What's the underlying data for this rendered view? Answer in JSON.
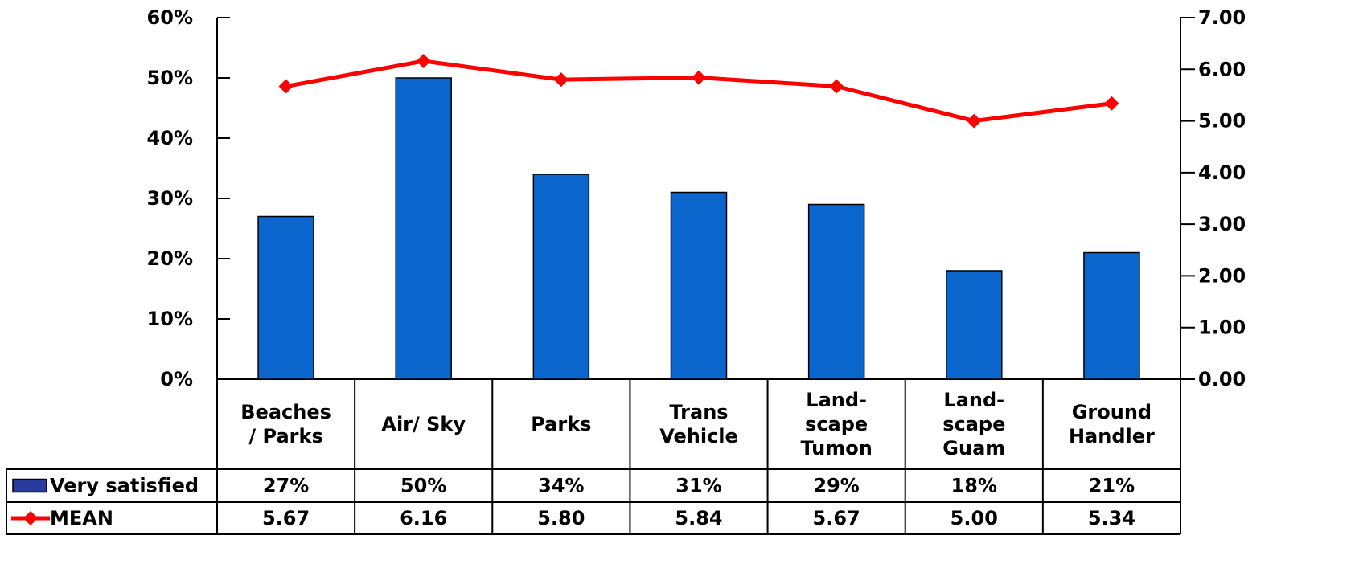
{
  "chart_data": {
    "type": "bar",
    "title": "",
    "xlabel": "",
    "ylabel": "",
    "categories": [
      [
        "Beaches",
        "/ Parks"
      ],
      [
        "Air/ Sky"
      ],
      [
        "Parks"
      ],
      [
        "Trans",
        "Vehicle"
      ],
      [
        "Land-",
        "scape",
        "Tumon"
      ],
      [
        "Land-",
        "scape",
        "Guam"
      ],
      [
        "Ground",
        "Handler"
      ]
    ],
    "ylim": [
      0,
      60
    ],
    "y_ticks": [
      0,
      10,
      20,
      30,
      40,
      50,
      60
    ],
    "y_tick_labels": [
      "0%",
      "10%",
      "20%",
      "30%",
      "40%",
      "50%",
      "60%"
    ],
    "y2lim": [
      0,
      7
    ],
    "y2_ticks": [
      0,
      1,
      2,
      3,
      4,
      5,
      6,
      7
    ],
    "y2_tick_labels": [
      "0.00",
      "1.00",
      "2.00",
      "3.00",
      "4.00",
      "5.00",
      "6.00",
      "7.00"
    ],
    "series": [
      {
        "name": "Very satisfied",
        "kind": "bar",
        "axis": "left",
        "color": "#0a66cc",
        "values": [
          27,
          50,
          34,
          31,
          29,
          18,
          21
        ],
        "labels": [
          "27%",
          "50%",
          "34%",
          "31%",
          "29%",
          "18%",
          "21%"
        ]
      },
      {
        "name": "MEAN",
        "kind": "line",
        "axis": "right",
        "color": "#ff0000",
        "values": [
          5.67,
          6.16,
          5.8,
          5.84,
          5.67,
          5.0,
          5.34
        ],
        "labels": [
          "5.67",
          "6.16",
          "5.80",
          "5.84",
          "5.67",
          "5.00",
          "5.34"
        ]
      }
    ],
    "legend": "data-table"
  }
}
